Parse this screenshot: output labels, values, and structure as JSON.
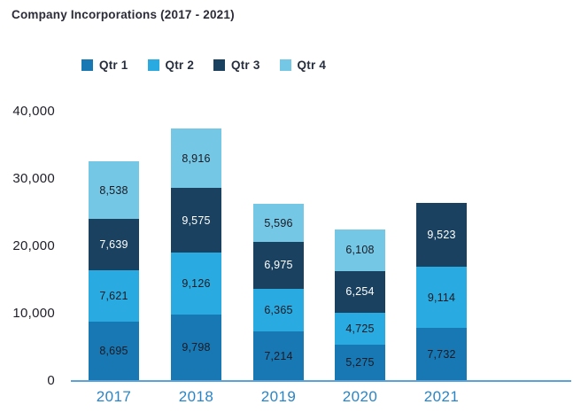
{
  "chart_data": {
    "type": "bar",
    "stacked": true,
    "title": "Company Incorporations (2017 - 2021)",
    "categories": [
      "2017",
      "2018",
      "2019",
      "2020",
      "2021"
    ],
    "series": [
      {
        "name": "Qtr 1",
        "color": "#1878b4",
        "label_color": "#1a1a22",
        "values": [
          8695,
          9798,
          7214,
          5275,
          7732
        ]
      },
      {
        "name": "Qtr 2",
        "color": "#29abe2",
        "label_color": "#1a1a22",
        "values": [
          7621,
          9126,
          6365,
          4725,
          9114
        ]
      },
      {
        "name": "Qtr 3",
        "color": "#1a415f",
        "label_color": "#ffffff",
        "values": [
          7639,
          9575,
          6975,
          6254,
          9523
        ]
      },
      {
        "name": "Qtr 4",
        "color": "#74c7e5",
        "label_color": "#1a1a22",
        "values": [
          8538,
          8916,
          5596,
          6108,
          0
        ]
      }
    ],
    "xlabel": "",
    "ylabel": "",
    "ylim": [
      0,
      40000
    ],
    "ytick_values": [
      40000,
      30000,
      20000,
      10000,
      0
    ],
    "ytick_labels": [
      "40,000",
      "30,000",
      "20,000",
      "10,000",
      "0"
    ],
    "grid": false,
    "legend_position": "top",
    "axis_line_color": "#5aa2d8",
    "xtick_color": "#2a85c7"
  }
}
